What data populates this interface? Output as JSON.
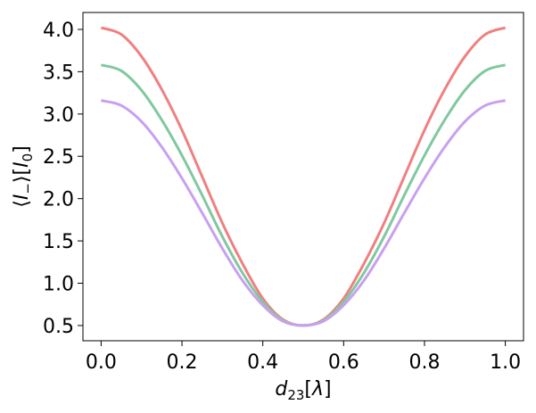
{
  "chart_data": {
    "type": "line",
    "title": "",
    "xlabel": {
      "var": "d",
      "sub": "23",
      "unit": "λ"
    },
    "ylabel": {
      "open": "⟨",
      "var": "I",
      "sub": "−",
      "close": "⟩",
      "unit_var": "I",
      "unit_sub": "0"
    },
    "xlim": [
      -0.045,
      1.045
    ],
    "ylim": [
      0.32,
      4.2
    ],
    "xticks": [
      {
        "value": 0.0,
        "label": "0.0"
      },
      {
        "value": 0.2,
        "label": "0.2"
      },
      {
        "value": 0.4,
        "label": "0.4"
      },
      {
        "value": 0.6,
        "label": "0.6"
      },
      {
        "value": 0.8,
        "label": "0.8"
      },
      {
        "value": 1.0,
        "label": "1.0"
      }
    ],
    "yticks": [
      {
        "value": 0.5,
        "label": "0.5"
      },
      {
        "value": 1.0,
        "label": "1.0"
      },
      {
        "value": 1.5,
        "label": "1.5"
      },
      {
        "value": 2.0,
        "label": "2.0"
      },
      {
        "value": 2.5,
        "label": "2.5"
      },
      {
        "value": 3.0,
        "label": "3.0"
      },
      {
        "value": 3.5,
        "label": "3.5"
      },
      {
        "value": 4.0,
        "label": "4.0"
      }
    ],
    "grid": false,
    "legend": null,
    "x": [
      0.0,
      0.05,
      0.1,
      0.15,
      0.2,
      0.25,
      0.3,
      0.35,
      0.4,
      0.45,
      0.5,
      0.55,
      0.6,
      0.65,
      0.7,
      0.75,
      0.8,
      0.85,
      0.9,
      0.95,
      1.0
    ],
    "series": [
      {
        "color": "#f08080",
        "values": [
          4.02,
          3.94,
          3.68,
          3.29,
          2.81,
          2.26,
          1.71,
          1.23,
          0.82,
          0.57,
          0.5,
          0.57,
          0.82,
          1.23,
          1.71,
          2.26,
          2.81,
          3.29,
          3.68,
          3.94,
          4.02
        ]
      },
      {
        "color": "#80c8a0",
        "values": [
          3.58,
          3.51,
          3.28,
          2.93,
          2.51,
          2.04,
          1.55,
          1.12,
          0.78,
          0.56,
          0.5,
          0.56,
          0.78,
          1.12,
          1.55,
          2.04,
          2.51,
          2.93,
          3.28,
          3.51,
          3.58
        ]
      },
      {
        "color": "#c8a0f0",
        "values": [
          3.16,
          3.1,
          2.91,
          2.61,
          2.24,
          1.83,
          1.41,
          1.03,
          0.74,
          0.55,
          0.5,
          0.55,
          0.74,
          1.03,
          1.41,
          1.83,
          2.24,
          2.61,
          2.91,
          3.1,
          3.16
        ]
      }
    ]
  }
}
